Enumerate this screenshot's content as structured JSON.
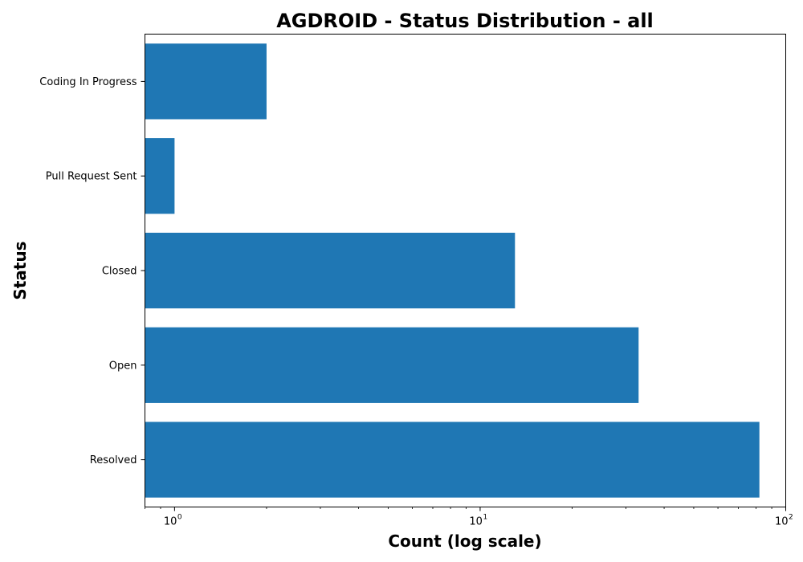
{
  "chart_data": {
    "type": "bar",
    "orientation": "horizontal",
    "title": "AGDROID - Status Distribution - all",
    "xlabel": "Count (log scale)",
    "ylabel": "Status",
    "x_scale": "log",
    "xlim": [
      0.8,
      100
    ],
    "categories": [
      "Resolved",
      "Open",
      "Closed",
      "Pull Request Sent",
      "Coding In Progress"
    ],
    "values": [
      82,
      33,
      13,
      1,
      2
    ],
    "x_ticks": [
      {
        "value": 1,
        "base": "10",
        "exp": "0"
      },
      {
        "value": 10,
        "base": "10",
        "exp": "1"
      },
      {
        "value": 100,
        "base": "10",
        "exp": "2"
      }
    ],
    "bar_color": "#1f77b4",
    "grid": false,
    "legend": "none"
  }
}
